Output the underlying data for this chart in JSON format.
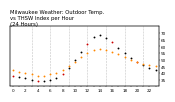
{
  "title_line1": "Milwaukee Weather: Outdoor Temp.",
  "title_line2": "vs THSW Index per Hour",
  "title_line3": "(24 Hours)",
  "hours": [
    0,
    1,
    2,
    3,
    4,
    5,
    6,
    7,
    8,
    9,
    10,
    11,
    12,
    13,
    14,
    15,
    16,
    17,
    18,
    19,
    20,
    21,
    22,
    23
  ],
  "temp": [
    42,
    41,
    40,
    39,
    38,
    38,
    39,
    40,
    42,
    45,
    48,
    52,
    55,
    57,
    58,
    57,
    56,
    54,
    52,
    50,
    48,
    47,
    46,
    45
  ],
  "thsw": [
    38,
    37,
    36,
    35,
    34,
    34,
    35,
    36,
    39,
    44,
    50,
    56,
    62,
    67,
    68,
    66,
    63,
    59,
    55,
    51,
    48,
    46,
    44,
    42
  ],
  "temp_color": "#ff8800",
  "thsw_color_a": "#cc0000",
  "thsw_color_b": "#000000",
  "bg_color": "#ffffff",
  "grid_color": "#aaaaaa",
  "title_color": "#000000",
  "ylim": [
    30,
    75
  ],
  "yticks": [
    35,
    40,
    45,
    50,
    55,
    60,
    65,
    70
  ],
  "ytick_labels": [
    "35",
    "40",
    "45",
    "50",
    "55",
    "60",
    "65",
    "70"
  ],
  "xlim": [
    -0.5,
    23.5
  ],
  "xticks": [
    0,
    1,
    2,
    3,
    4,
    5,
    6,
    7,
    8,
    9,
    10,
    11,
    12,
    13,
    14,
    15,
    16,
    17,
    18,
    19,
    20,
    21,
    22,
    23
  ],
  "xtick_labels": [
    "0",
    "",
    "2",
    "",
    "4",
    "",
    "6",
    "",
    "8",
    "",
    "10",
    "",
    "12",
    "",
    "14",
    "",
    "16",
    "",
    "18",
    "",
    "20",
    "",
    "22",
    ""
  ],
  "grid_xticks": [
    3,
    6,
    9,
    12,
    15,
    18,
    21
  ],
  "marker_size": 1.8,
  "title_fontsize": 3.8,
  "tick_fontsize": 3.0
}
